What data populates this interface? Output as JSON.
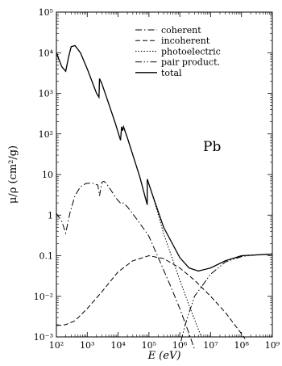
{
  "chart_data": {
    "type": "line",
    "title": "",
    "annotation": "Pb",
    "xlabel": "E (eV)",
    "ylabel": "μ/ρ (cm²/g)",
    "xscale": "log",
    "yscale": "log",
    "xlim": [
      100,
      1000000000
    ],
    "ylim": [
      0.001,
      100000
    ],
    "legend_position": "top-right",
    "grid": false,
    "x_tick_labels": [
      "10²",
      "10³",
      "10⁴",
      "10⁵",
      "10⁶",
      "10⁷",
      "10⁸",
      "10⁹"
    ],
    "y_tick_labels": [
      "10⁻³",
      "10⁻²",
      "0.1",
      "1",
      "10",
      "10²",
      "10³",
      "10⁴",
      "10⁵"
    ],
    "series": [
      {
        "name": "coherent",
        "style": "dashdot",
        "points": [
          [
            100,
            1.1
          ],
          [
            150,
            0.7
          ],
          [
            200,
            0.36
          ],
          [
            280,
            1.2
          ],
          [
            400,
            3.0
          ],
          [
            600,
            5.0
          ],
          [
            900,
            6.0
          ],
          [
            1400,
            6.2
          ],
          [
            2200,
            5.5
          ],
          [
            2500,
            3.0
          ],
          [
            3000,
            6.5
          ],
          [
            3500,
            6.8
          ],
          [
            4200,
            6.0
          ],
          [
            6000,
            4.0
          ],
          [
            9000,
            2.5
          ],
          [
            12500,
            1.9
          ],
          [
            15000,
            2.0
          ],
          [
            20000,
            1.6
          ],
          [
            40000,
            0.8
          ],
          [
            88000,
            0.35
          ],
          [
            100000,
            0.3
          ],
          [
            200000,
            0.09
          ],
          [
            500000,
            0.018
          ],
          [
            1000000,
            0.005
          ],
          [
            2000000,
            0.0012
          ],
          [
            3000000,
            0.0005
          ]
        ]
      },
      {
        "name": "incoherent",
        "style": "dashed",
        "points": [
          [
            100,
            0.0019
          ],
          [
            200,
            0.002
          ],
          [
            400,
            0.0025
          ],
          [
            1000,
            0.005
          ],
          [
            3000,
            0.013
          ],
          [
            10000,
            0.04
          ],
          [
            30000,
            0.075
          ],
          [
            100000,
            0.1
          ],
          [
            300000,
            0.085
          ],
          [
            1000000,
            0.05
          ],
          [
            3000000,
            0.025
          ],
          [
            10000000,
            0.01
          ],
          [
            30000000,
            0.004
          ],
          [
            100000000,
            0.0012
          ],
          [
            130000000,
            0.0009
          ]
        ]
      },
      {
        "name": "photoelectric",
        "style": "dotted",
        "points": [
          [
            100,
            10000
          ],
          [
            150,
            4500
          ],
          [
            200,
            3500
          ],
          [
            250,
            8000
          ],
          [
            300,
            14000
          ],
          [
            400,
            15000
          ],
          [
            600,
            10000
          ],
          [
            1000,
            4000
          ],
          [
            2000,
            1000
          ],
          [
            2400,
            800
          ],
          [
            2500,
            2300
          ],
          [
            3000,
            1700
          ],
          [
            4000,
            900
          ],
          [
            8000,
            190
          ],
          [
            12000,
            70
          ],
          [
            13000,
            150
          ],
          [
            14000,
            120
          ],
          [
            15000,
            150
          ],
          [
            20000,
            80
          ],
          [
            50000,
            9
          ],
          [
            88000,
            1.8
          ],
          [
            88100,
            7.7
          ],
          [
            150000,
            2.2
          ],
          [
            300000,
            0.35
          ],
          [
            1000000,
            0.025
          ],
          [
            2000000,
            0.006
          ],
          [
            5000000,
            0.001
          ]
        ]
      },
      {
        "name": "pair product.",
        "style": "dashdotdot",
        "points": [
          [
            1100000,
            0.0008
          ],
          [
            1500000,
            0.002
          ],
          [
            3000000,
            0.01
          ],
          [
            10000000,
            0.035
          ],
          [
            30000000,
            0.07
          ],
          [
            100000000,
            0.095
          ],
          [
            300000000,
            0.105
          ],
          [
            1000000000,
            0.11
          ]
        ]
      },
      {
        "name": "total",
        "style": "solid",
        "points": [
          [
            100,
            10000
          ],
          [
            150,
            4500
          ],
          [
            200,
            3500
          ],
          [
            250,
            8000
          ],
          [
            300,
            14000
          ],
          [
            400,
            15000
          ],
          [
            600,
            10000
          ],
          [
            1000,
            4000
          ],
          [
            2000,
            1000
          ],
          [
            2400,
            800
          ],
          [
            2500,
            2300
          ],
          [
            3000,
            1700
          ],
          [
            4000,
            900
          ],
          [
            8000,
            190
          ],
          [
            12000,
            70
          ],
          [
            13000,
            150
          ],
          [
            14000,
            120
          ],
          [
            15000,
            150
          ],
          [
            20000,
            80
          ],
          [
            50000,
            9
          ],
          [
            88000,
            1.8
          ],
          [
            88100,
            7.7
          ],
          [
            150000,
            2.3
          ],
          [
            300000,
            0.5
          ],
          [
            1000000,
            0.09
          ],
          [
            2000000,
            0.05
          ],
          [
            4000000,
            0.042
          ],
          [
            10000000,
            0.05
          ],
          [
            30000000,
            0.075
          ],
          [
            100000000,
            0.1
          ],
          [
            1000000000,
            0.11
          ]
        ]
      }
    ]
  }
}
